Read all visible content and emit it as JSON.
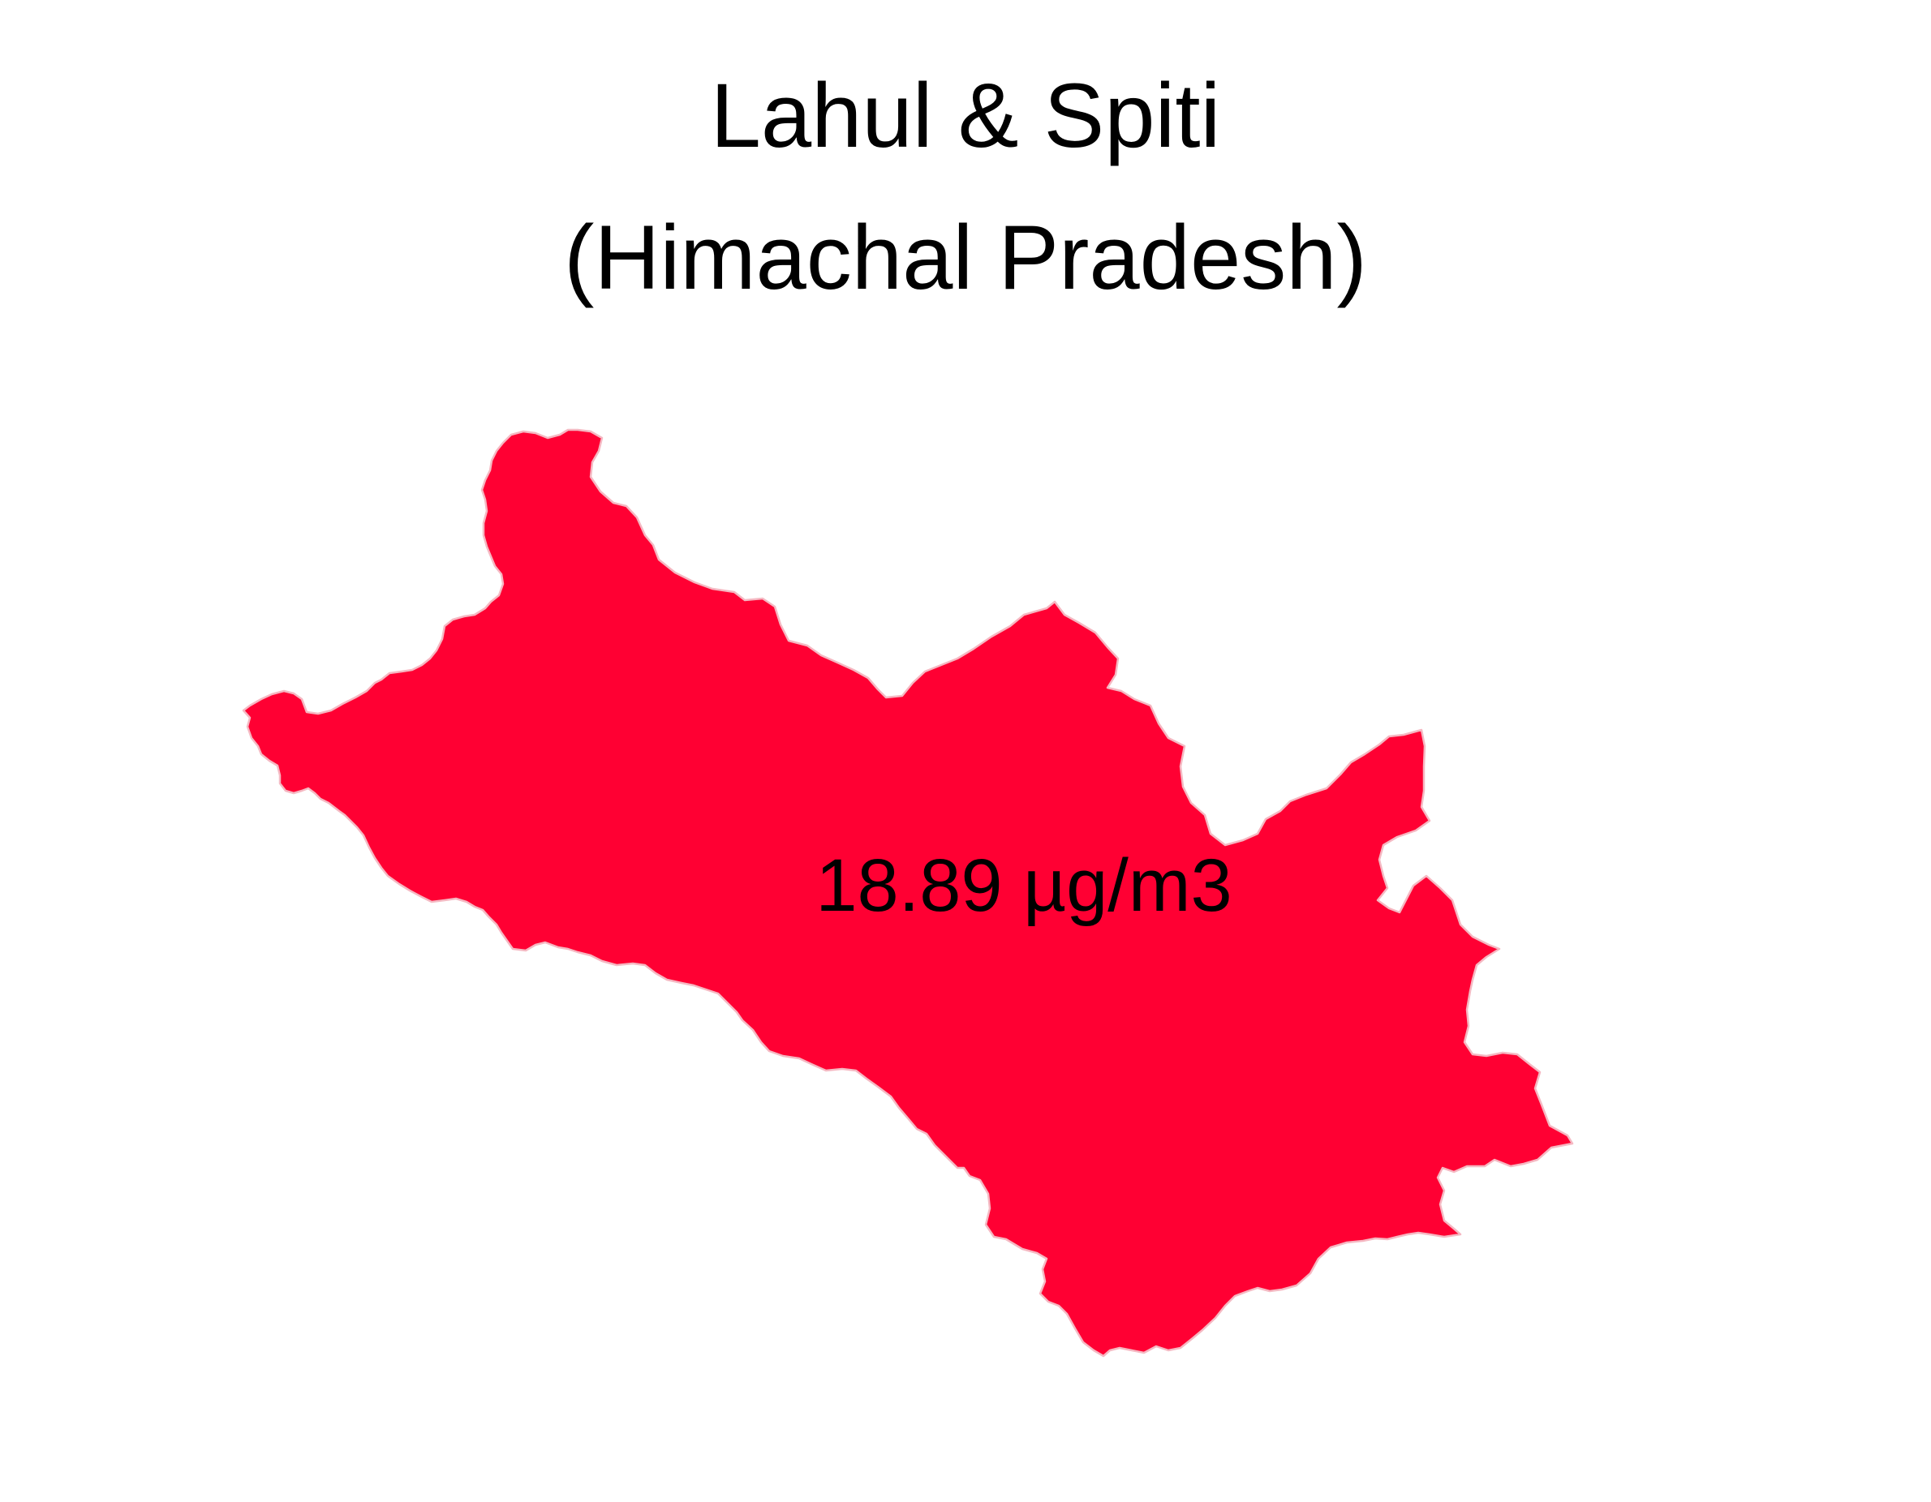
{
  "map": {
    "title_line1": "Lahul & Spiti",
    "title_line2": "(Himachal Pradesh)",
    "district": "Lahul & Spiti",
    "state": "Himachal Pradesh",
    "value_label": "18.89 µg/m3",
    "value": 18.89,
    "unit": "µg/m3",
    "fill_color": "#ff0033",
    "border_color": "#f5b8c2",
    "background_color": "#ffffff"
  }
}
